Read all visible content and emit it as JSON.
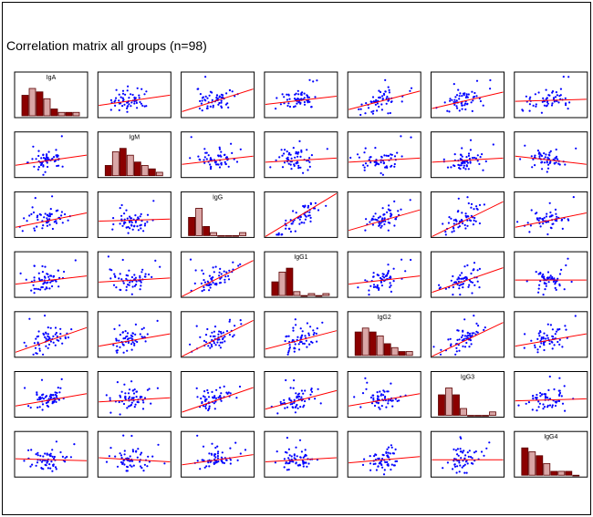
{
  "title": "Correlation matrix all groups (n=98)",
  "colors": {
    "points": "#0000ff",
    "fit_line": "#ff0000",
    "hist_fill_dark": "#8b0000",
    "hist_fill_light": "#d9a6a6",
    "hist_edge": "#5a0000",
    "panel_border": "#000000"
  },
  "chart_data": {
    "type": "scatter",
    "layout": "scatterplot-matrix",
    "variables": [
      "IgA",
      "IgM",
      "IgG",
      "IgG1",
      "IgG2",
      "IgG3",
      "IgG4"
    ],
    "n": 98,
    "diagonal": "histogram",
    "off_diagonal": "scatter with linear fit line",
    "histograms": {
      "IgA": [
        6,
        8,
        7,
        5,
        2,
        1,
        1,
        1
      ],
      "IgM": [
        3,
        7,
        8,
        6,
        4,
        3,
        2,
        1
      ],
      "IgG": [
        6,
        9,
        3,
        1,
        0,
        0,
        0,
        1
      ],
      "IgG1": [
        7,
        12,
        14,
        2,
        0,
        1,
        0,
        1
      ],
      "IgG2": [
        6,
        7,
        6,
        5,
        3,
        2,
        1,
        1
      ],
      "IgG3": [
        6,
        8,
        6,
        2,
        0,
        0,
        0,
        1
      ],
      "IgG4": [
        7,
        6,
        5,
        3,
        1,
        1,
        1,
        0
      ]
    },
    "fit_slopes_normalized": [
      [
        null,
        0.25,
        0.55,
        0.2,
        0.45,
        0.4,
        0.05
      ],
      [
        0.25,
        null,
        0.2,
        0.1,
        0.1,
        0.1,
        -0.2
      ],
      [
        0.35,
        0.05,
        null,
        1.3,
        0.5,
        0.9,
        0.35
      ],
      [
        0.2,
        0.1,
        0.95,
        null,
        0.2,
        0.6,
        0.0
      ],
      [
        0.6,
        0.3,
        0.95,
        0.45,
        null,
        0.85,
        0.3
      ],
      [
        0.3,
        0.1,
        0.6,
        0.45,
        0.3,
        null,
        0.05
      ],
      [
        -0.05,
        -0.1,
        0.25,
        0.1,
        0.15,
        0.0,
        null
      ]
    ]
  }
}
